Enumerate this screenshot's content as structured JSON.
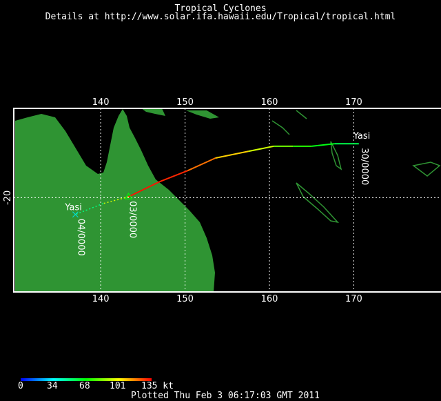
{
  "title": "Tropical Cyclones",
  "subtitle": "Details at http://www.solar.ifa.hawaii.edu/Tropical/tropical.html",
  "map": {
    "lon_range": [
      129.7,
      180.5
    ],
    "lat_range": [
      -31.2,
      -9.4
    ],
    "lon_ticks": [
      "140",
      "150",
      "160",
      "170"
    ],
    "lon_tick_values": [
      140,
      150,
      160,
      170
    ],
    "lat_ticks": [
      "-20"
    ],
    "lat_tick_values": [
      -20
    ],
    "land_color": "#2f9433",
    "grid": "dotted white"
  },
  "storm": {
    "name": "Yasi",
    "name_end": "Yasi",
    "start_label": "30/0000",
    "mid_label": "03/0000",
    "end_label": "04/0000",
    "track": [
      {
        "lon": 170.6,
        "lat": -13.6,
        "kt": 55
      },
      {
        "lon": 167.7,
        "lat": -13.6,
        "kt": 60
      },
      {
        "lon": 165.0,
        "lat": -13.9,
        "kt": 70
      },
      {
        "lon": 162.8,
        "lat": -13.9,
        "kt": 75
      },
      {
        "lon": 160.5,
        "lat": -13.9,
        "kt": 90
      },
      {
        "lon": 157.5,
        "lat": -14.5,
        "kt": 100
      },
      {
        "lon": 153.6,
        "lat": -15.3,
        "kt": 115
      },
      {
        "lon": 150.3,
        "lat": -16.8,
        "kt": 125
      },
      {
        "lon": 147.0,
        "lat": -18.1,
        "kt": 135
      },
      {
        "lon": 143.3,
        "lat": -19.9,
        "kt": 130
      },
      {
        "lon": 140.3,
        "lat": -20.7,
        "kt": 60
      },
      {
        "lon": 137.0,
        "lat": -22.0,
        "kt": 40
      }
    ]
  },
  "colorbar": {
    "labels": [
      "0",
      "34",
      "68",
      "101",
      "135 kt"
    ],
    "colors": [
      "#0000ff",
      "#00ffff",
      "#00ff00",
      "#ffff00",
      "#ff0000"
    ]
  },
  "footer": "Plotted Thu Feb 3 06:17:03 GMT 2011"
}
